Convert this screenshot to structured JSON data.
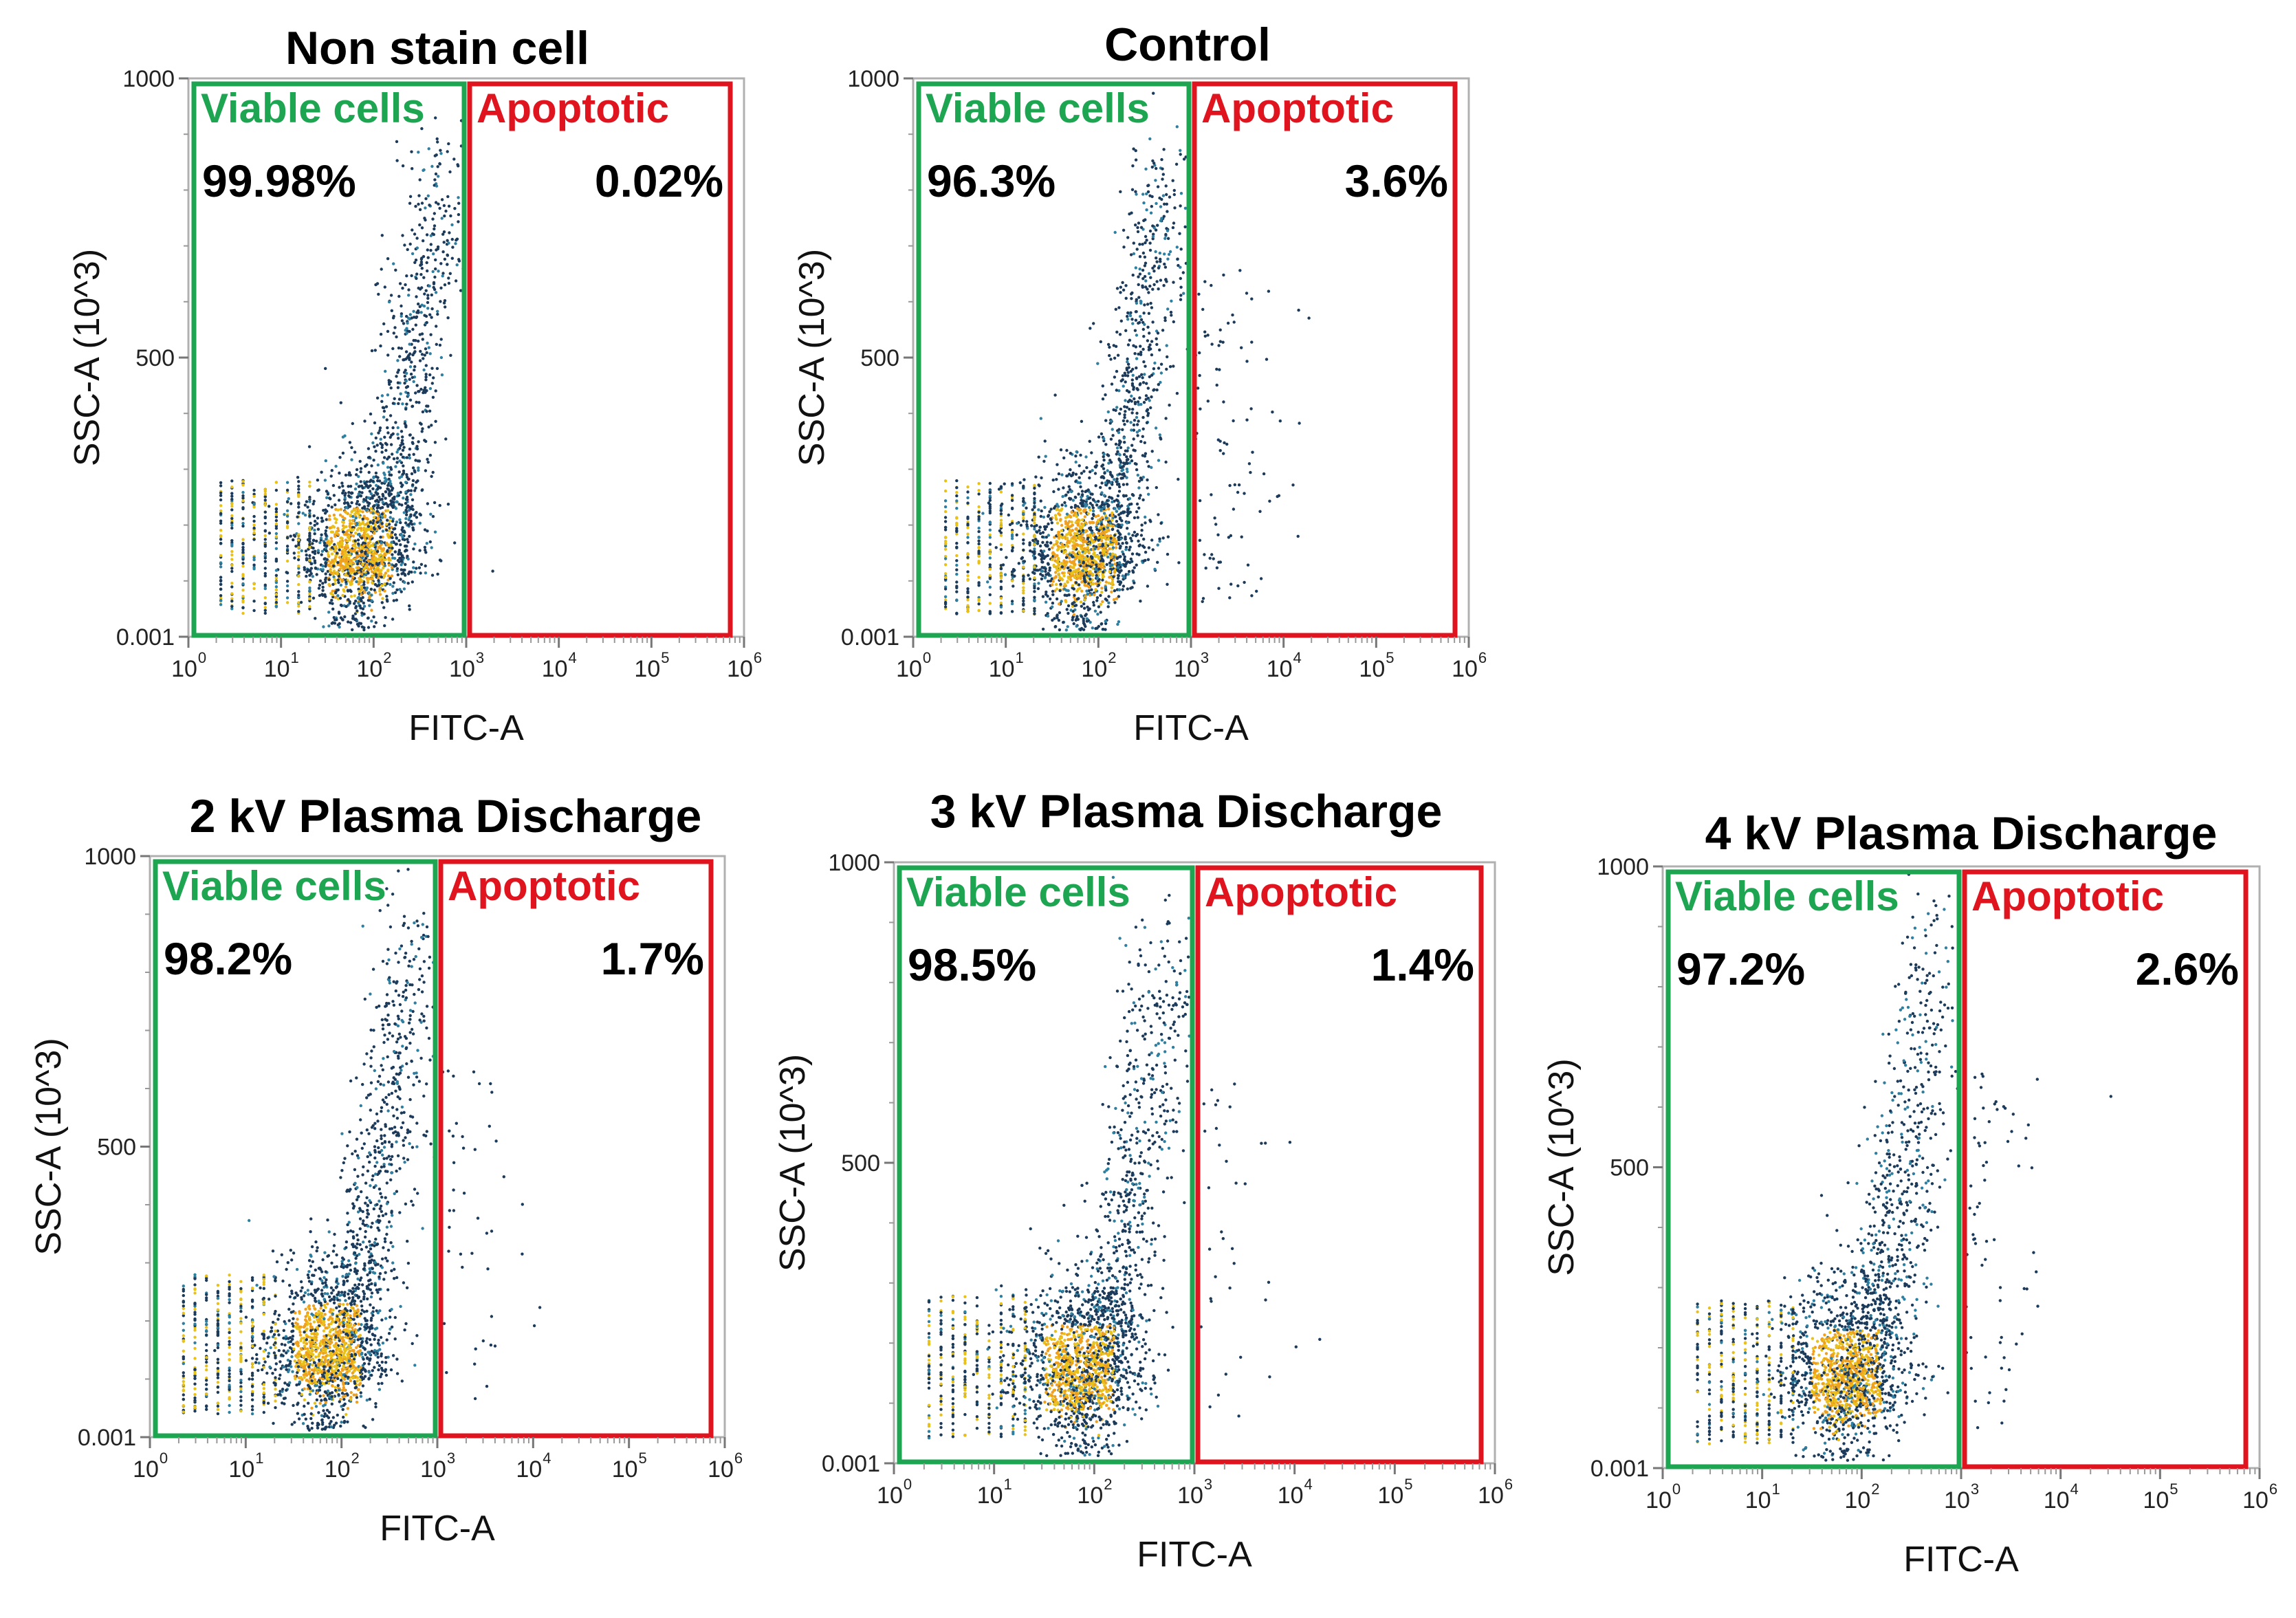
{
  "colors": {
    "viable_gate": "#1ea552",
    "apoptotic_gate": "#e0141e",
    "frame": "#b0b0b0",
    "dot_dark": "#1c3a5a",
    "dot_mid": "#2f7fa0",
    "dot_yellow": "#e8c21a",
    "dot_orange": "#f0a020"
  },
  "chart_data": [
    {
      "type": "scatter",
      "title": "Non stain cell",
      "xlabel": "FITC-A",
      "ylabel": "SSC-A (10^3)",
      "x_scale": "log10",
      "xlim": [
        1,
        1000000
      ],
      "ylim": [
        0.001,
        1000
      ],
      "y_ticks": [
        "0.001",
        "500",
        "1000"
      ],
      "x_ticks": [
        {
          "base": "10",
          "exp": "0"
        },
        {
          "base": "10",
          "exp": "1"
        },
        {
          "base": "10",
          "exp": "2"
        },
        {
          "base": "10",
          "exp": "3"
        },
        {
          "base": "10",
          "exp": "4"
        },
        {
          "base": "10",
          "exp": "5"
        },
        {
          "base": "10",
          "exp": "6"
        }
      ],
      "gates": [
        {
          "name": "Viable cells",
          "percent": "99.98%",
          "x_range": [
            1.5,
            1000
          ],
          "color": "#1ea552"
        },
        {
          "name": "Apoptotic",
          "percent": "0.02%",
          "x_range": [
            1000,
            800000
          ],
          "color": "#e0141e"
        }
      ],
      "apoptotic_fraction": 0.0002
    },
    {
      "type": "scatter",
      "title": "Control",
      "xlabel": "FITC-A",
      "ylabel": "SSC-A (10^3)",
      "x_scale": "log10",
      "xlim": [
        1,
        1000000
      ],
      "ylim": [
        0.001,
        1000
      ],
      "y_ticks": [
        "0.001",
        "500",
        "1000"
      ],
      "x_ticks": [
        {
          "base": "10",
          "exp": "0"
        },
        {
          "base": "10",
          "exp": "1"
        },
        {
          "base": "10",
          "exp": "2"
        },
        {
          "base": "10",
          "exp": "3"
        },
        {
          "base": "10",
          "exp": "4"
        },
        {
          "base": "10",
          "exp": "5"
        },
        {
          "base": "10",
          "exp": "6"
        }
      ],
      "gates": [
        {
          "name": "Viable cells",
          "percent": "96.3%",
          "x_range": [
            1.5,
            1000
          ],
          "color": "#1ea552"
        },
        {
          "name": "Apoptotic",
          "percent": "3.6%",
          "x_range": [
            1000,
            800000
          ],
          "color": "#e0141e"
        }
      ],
      "apoptotic_fraction": 0.036
    },
    {
      "type": "scatter",
      "title": "2 kV Plasma Discharge",
      "xlabel": "FITC-A",
      "ylabel": "SSC-A (10^3)",
      "x_scale": "log10",
      "xlim": [
        1,
        1000000
      ],
      "ylim": [
        0.001,
        1000
      ],
      "y_ticks": [
        "0.001",
        "500",
        "1000"
      ],
      "x_ticks": [
        {
          "base": "10",
          "exp": "0"
        },
        {
          "base": "10",
          "exp": "1"
        },
        {
          "base": "10",
          "exp": "2"
        },
        {
          "base": "10",
          "exp": "3"
        },
        {
          "base": "10",
          "exp": "4"
        },
        {
          "base": "10",
          "exp": "5"
        },
        {
          "base": "10",
          "exp": "6"
        }
      ],
      "gates": [
        {
          "name": "Viable cells",
          "percent": "98.2%",
          "x_range": [
            1.5,
            1000
          ],
          "color": "#1ea552"
        },
        {
          "name": "Apoptotic",
          "percent": "1.7%",
          "x_range": [
            1000,
            800000
          ],
          "color": "#e0141e"
        }
      ],
      "apoptotic_fraction": 0.017
    },
    {
      "type": "scatter",
      "title": "3 kV Plasma Discharge",
      "xlabel": "FITC-A",
      "ylabel": "SSC-A (10^3)",
      "x_scale": "log10",
      "xlim": [
        1,
        1000000
      ],
      "ylim": [
        0.001,
        1000
      ],
      "y_ticks": [
        "0.001",
        "500",
        "1000"
      ],
      "x_ticks": [
        {
          "base": "10",
          "exp": "0"
        },
        {
          "base": "10",
          "exp": "1"
        },
        {
          "base": "10",
          "exp": "2"
        },
        {
          "base": "10",
          "exp": "3"
        },
        {
          "base": "10",
          "exp": "4"
        },
        {
          "base": "10",
          "exp": "5"
        },
        {
          "base": "10",
          "exp": "6"
        }
      ],
      "gates": [
        {
          "name": "Viable cells",
          "percent": "98.5%",
          "x_range": [
            1.5,
            1000
          ],
          "color": "#1ea552"
        },
        {
          "name": "Apoptotic",
          "percent": "1.4%",
          "x_range": [
            1000,
            800000
          ],
          "color": "#e0141e"
        }
      ],
      "apoptotic_fraction": 0.014
    },
    {
      "type": "scatter",
      "title": "4 kV Plasma Discharge",
      "xlabel": "FITC-A",
      "ylabel": "SSC-A (10^3)",
      "x_scale": "log10",
      "xlim": [
        1,
        1000000
      ],
      "ylim": [
        0.001,
        1000
      ],
      "y_ticks": [
        "0.001",
        "500",
        "1000"
      ],
      "x_ticks": [
        {
          "base": "10",
          "exp": "0"
        },
        {
          "base": "10",
          "exp": "1"
        },
        {
          "base": "10",
          "exp": "2"
        },
        {
          "base": "10",
          "exp": "3"
        },
        {
          "base": "10",
          "exp": "4"
        },
        {
          "base": "10",
          "exp": "5"
        },
        {
          "base": "10",
          "exp": "6"
        }
      ],
      "gates": [
        {
          "name": "Viable cells",
          "percent": "97.2%",
          "x_range": [
            1.5,
            1000
          ],
          "color": "#1ea552"
        },
        {
          "name": "Apoptotic",
          "percent": "2.6%",
          "x_range": [
            1000,
            800000
          ],
          "color": "#e0141e"
        }
      ],
      "apoptotic_fraction": 0.026
    }
  ]
}
